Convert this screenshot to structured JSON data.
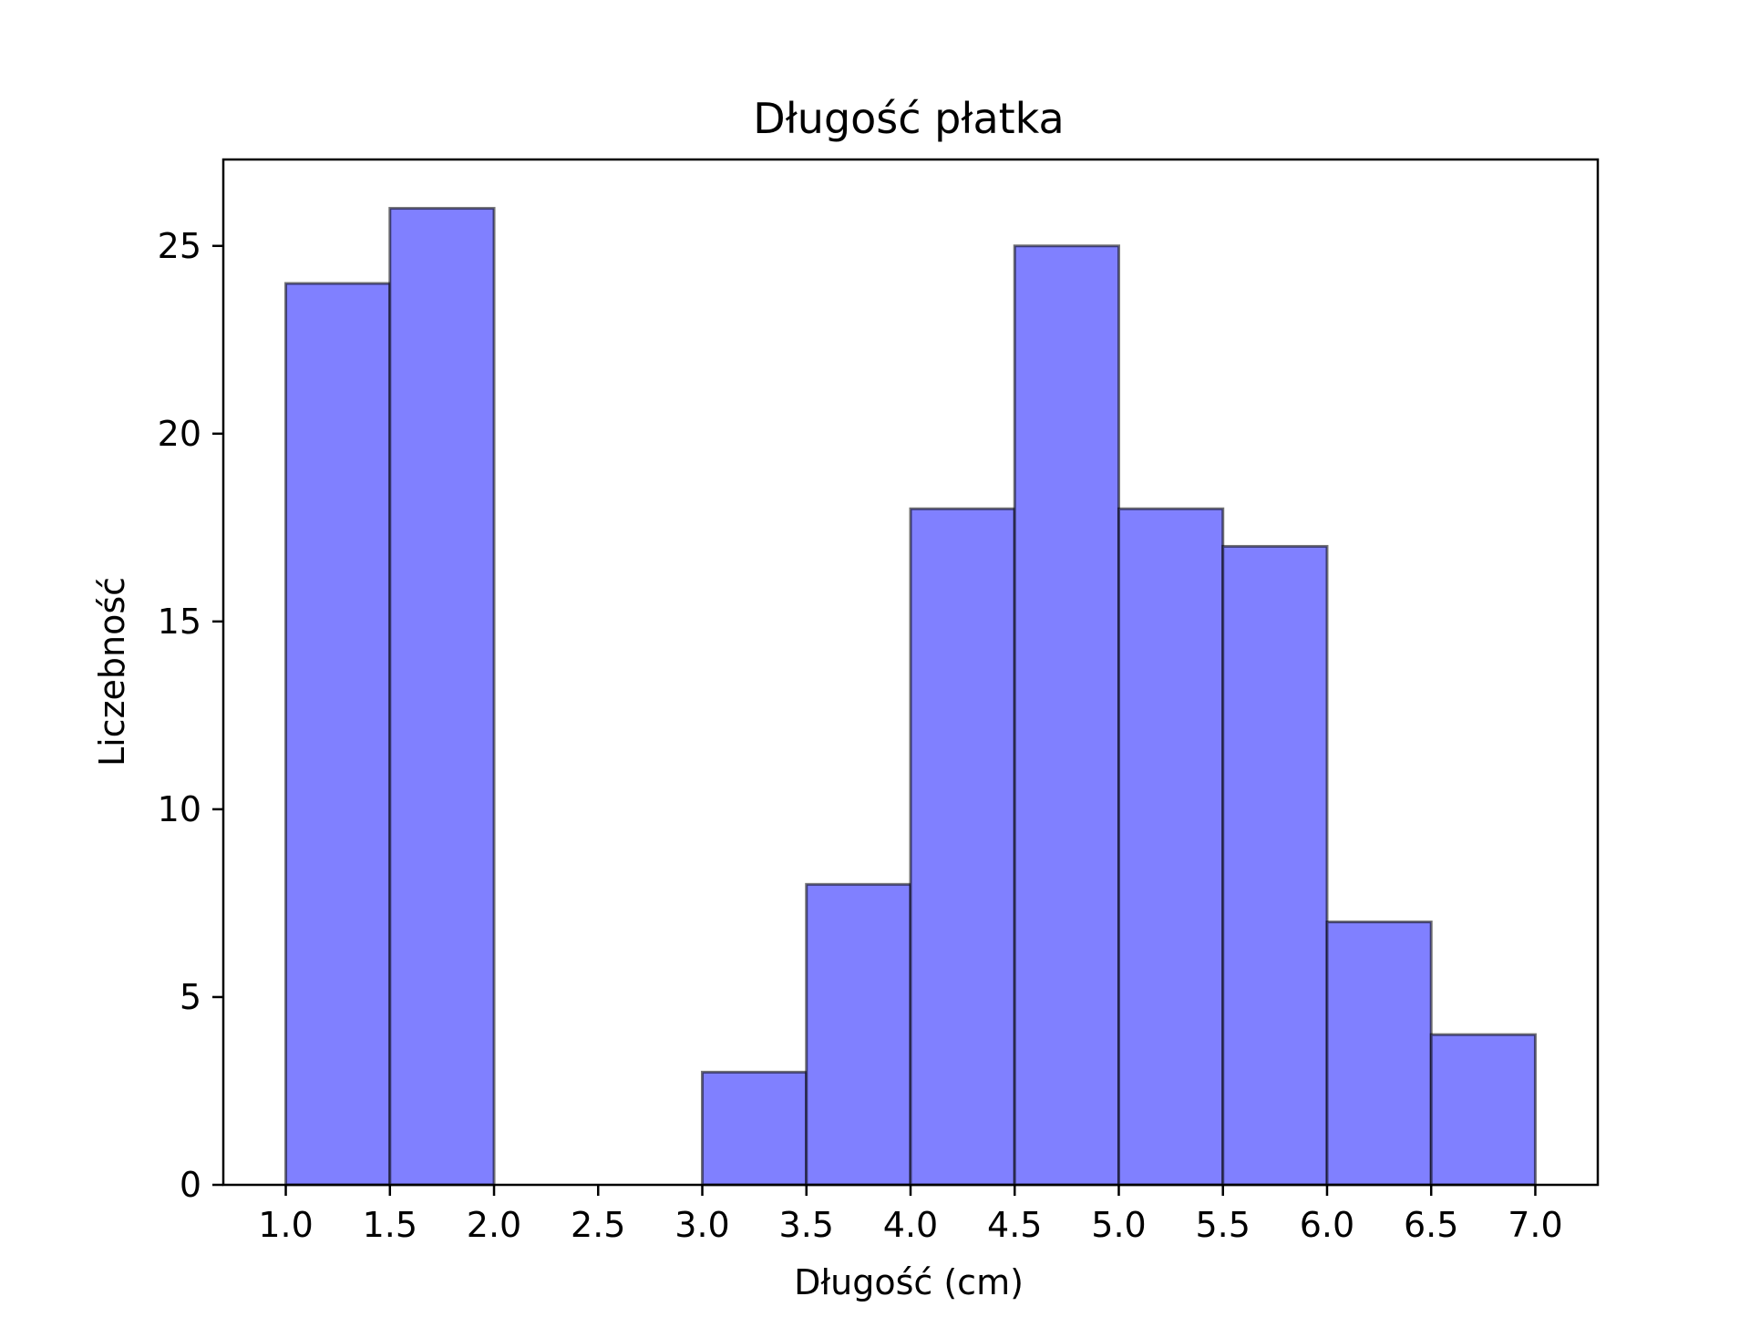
{
  "chart_data": {
    "type": "bar",
    "title": "Długość płatka",
    "xlabel": "Długość (cm)",
    "ylabel": "Liczebność",
    "bins": [
      {
        "start": 1.0,
        "end": 1.5,
        "count": 24
      },
      {
        "start": 1.5,
        "end": 2.0,
        "count": 26
      },
      {
        "start": 2.0,
        "end": 2.5,
        "count": 0
      },
      {
        "start": 2.5,
        "end": 3.0,
        "count": 0
      },
      {
        "start": 3.0,
        "end": 3.5,
        "count": 3
      },
      {
        "start": 3.5,
        "end": 4.0,
        "count": 8
      },
      {
        "start": 4.0,
        "end": 4.5,
        "count": 18
      },
      {
        "start": 4.5,
        "end": 5.0,
        "count": 25
      },
      {
        "start": 5.0,
        "end": 5.5,
        "count": 18
      },
      {
        "start": 5.5,
        "end": 6.0,
        "count": 17
      },
      {
        "start": 6.0,
        "end": 6.5,
        "count": 7
      },
      {
        "start": 6.5,
        "end": 7.0,
        "count": 4
      }
    ],
    "xlim": [
      0.7,
      7.3
    ],
    "ylim": [
      0,
      27.3
    ],
    "xticks": [
      "1.0",
      "1.5",
      "2.0",
      "2.5",
      "3.0",
      "3.5",
      "4.0",
      "4.5",
      "5.0",
      "5.5",
      "6.0",
      "6.5",
      "7.0"
    ],
    "yticks": [
      "0",
      "5",
      "10",
      "15",
      "20",
      "25"
    ],
    "grid": false,
    "bar_color": "#8080ff",
    "edge_color": "#000000"
  }
}
